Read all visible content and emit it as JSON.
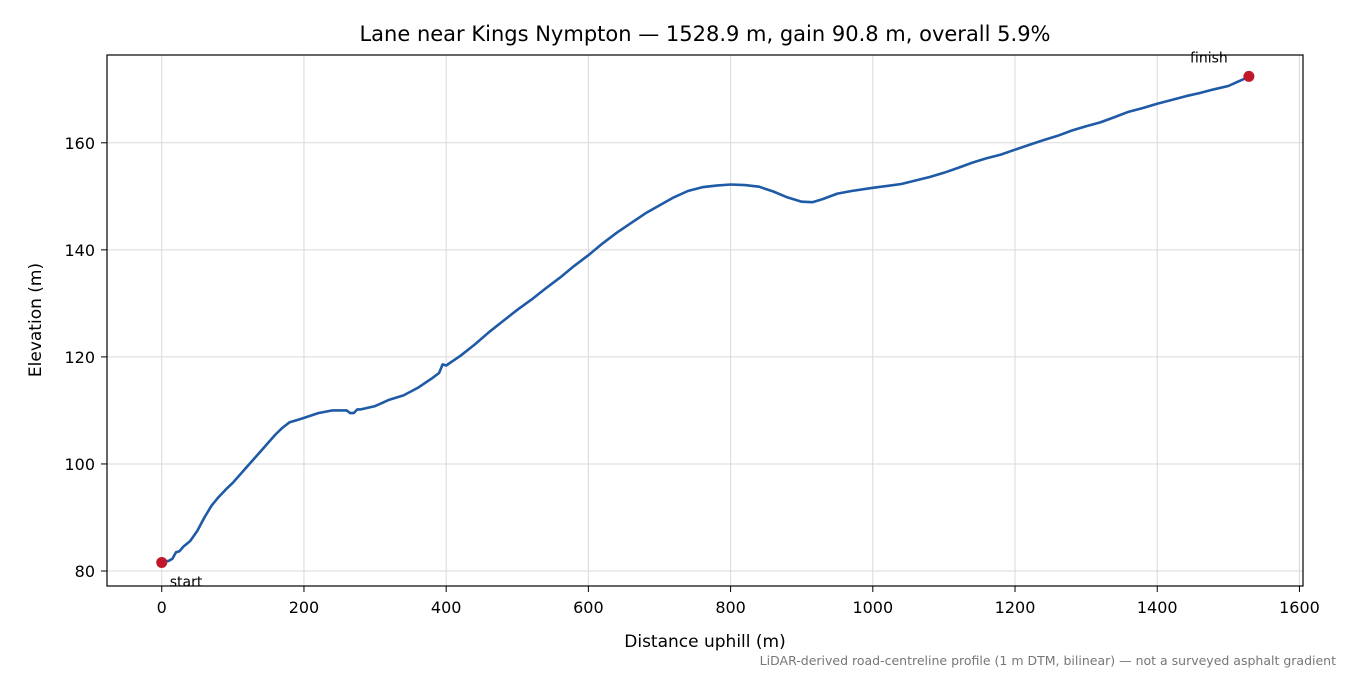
{
  "chart_data": {
    "type": "line",
    "title": "Lane near Kings Nympton — 1528.9 m, gain 90.8 m, overall 5.9%",
    "xlabel": "Distance uphill (m)",
    "ylabel": "Elevation (m)",
    "xlim": [
      -77,
      1605
    ],
    "ylim": [
      77.2,
      176.4
    ],
    "x_ticks": [
      0,
      200,
      400,
      600,
      800,
      1000,
      1200,
      1400,
      1600
    ],
    "y_ticks": [
      80,
      100,
      120,
      140,
      160
    ],
    "grid": true,
    "line_color": "#1f5aa6",
    "marker_color": "#c0182a",
    "series": [
      {
        "x": [
          0,
          10,
          15,
          20,
          25,
          30,
          40,
          50,
          60,
          70,
          80,
          90,
          100,
          120,
          140,
          150,
          160,
          170,
          180,
          190,
          200,
          220,
          240,
          260,
          265,
          270,
          275,
          280,
          300,
          320,
          340,
          360,
          380,
          390,
          395,
          400,
          420,
          440,
          460,
          480,
          500,
          520,
          540,
          560,
          580,
          600,
          620,
          640,
          660,
          680,
          700,
          720,
          740,
          760,
          780,
          800,
          820,
          840,
          860,
          880,
          900,
          915,
          930,
          950,
          970,
          1000,
          1040,
          1080,
          1100,
          1120,
          1140,
          1160,
          1180,
          1200,
          1220,
          1240,
          1260,
          1280,
          1300,
          1320,
          1340,
          1360,
          1380,
          1400,
          1420,
          1440,
          1460,
          1480,
          1500,
          1510,
          1520,
          1528.9
        ],
        "y": [
          81.6,
          81.9,
          82.3,
          83.5,
          83.7,
          84.5,
          85.6,
          87.5,
          90.0,
          92.2,
          93.8,
          95.2,
          96.5,
          99.5,
          102.5,
          104.0,
          105.5,
          106.8,
          107.8,
          108.2,
          108.6,
          109.5,
          110.0,
          110.0,
          109.5,
          109.5,
          110.2,
          110.2,
          110.8,
          112.0,
          112.8,
          114.2,
          116.0,
          117.0,
          118.6,
          118.4,
          120.2,
          122.3,
          124.6,
          126.7,
          128.8,
          130.7,
          132.8,
          134.8,
          137.0,
          139.0,
          141.2,
          143.2,
          145.0,
          146.8,
          148.3,
          149.8,
          151.0,
          151.7,
          152.0,
          152.2,
          152.1,
          151.8,
          150.9,
          149.8,
          149.0,
          148.9,
          149.5,
          150.5,
          151.0,
          151.6,
          152.3,
          153.6,
          154.4,
          155.3,
          156.3,
          157.1,
          157.8,
          158.7,
          159.6,
          160.5,
          161.3,
          162.3,
          163.1,
          163.8,
          164.8,
          165.8,
          166.5,
          167.3,
          168.0,
          168.7,
          169.3,
          170.0,
          170.6,
          171.2,
          171.8,
          172.4
        ]
      }
    ],
    "annotations": [
      {
        "text": "start",
        "x": 0,
        "y": 81.6
      },
      {
        "text": "finish",
        "x": 1528.9,
        "y": 172.4
      }
    ],
    "footnote": "LiDAR-derived road-centreline profile (1 m DTM, bilinear) — not a surveyed asphalt gradient"
  }
}
